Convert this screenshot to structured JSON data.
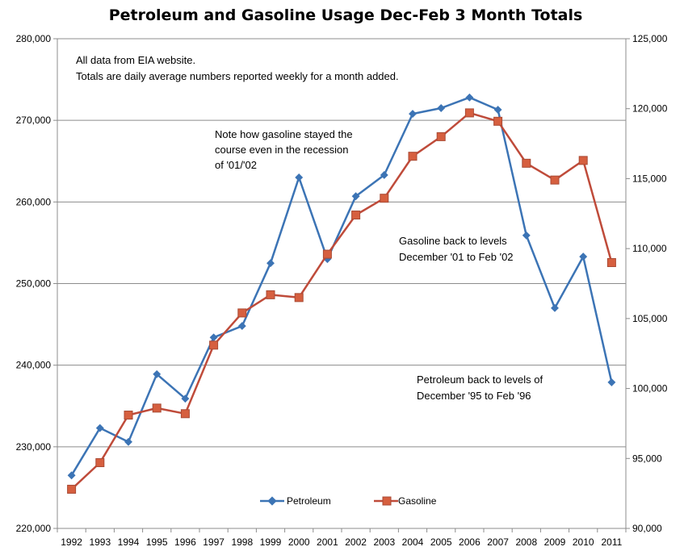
{
  "chart_data": {
    "type": "line",
    "title": "Petroleum and Gasoline Usage Dec-Feb 3 Month Totals",
    "x": [
      "1992",
      "1993",
      "1994",
      "1995",
      "1996",
      "1997",
      "1998",
      "1999",
      "2000",
      "2001",
      "2002",
      "2003",
      "2004",
      "2005",
      "2006",
      "2007",
      "2008",
      "2009",
      "2010",
      "2011"
    ],
    "y_left": {
      "min": 220000,
      "max": 280000,
      "step": 10000,
      "ticks": [
        "220,000",
        "230,000",
        "240,000",
        "250,000",
        "260,000",
        "270,000",
        "280,000"
      ]
    },
    "y_right": {
      "min": 90000,
      "max": 125000,
      "step": 5000,
      "ticks": [
        "90,000",
        "95,000",
        "100,000",
        "105,000",
        "110,000",
        "115,000",
        "120,000",
        "125,000"
      ]
    },
    "grid": true,
    "legend_position": "bottom-center",
    "series": [
      {
        "name": "Petroleum",
        "axis": "left",
        "color": "#3c74b5",
        "marker": "diamond",
        "values": [
          226500,
          232300,
          230600,
          238900,
          235900,
          243400,
          244800,
          252500,
          263000,
          253000,
          260700,
          263300,
          270800,
          271500,
          272800,
          271300,
          255900,
          247000,
          253300,
          237900
        ]
      },
      {
        "name": "Gasoline",
        "axis": "right",
        "color": "#bf4b3a",
        "marker": "square",
        "values": [
          92800,
          94700,
          98100,
          98600,
          98200,
          103100,
          105400,
          106700,
          106500,
          109600,
          112400,
          113600,
          116600,
          118000,
          119700,
          119100,
          116100,
          114900,
          116300,
          109000
        ]
      }
    ],
    "annotations": [
      {
        "lines": [
          "All data from EIA website.",
          "Totals are daily average numbers reported  weekly for a month  added."
        ]
      },
      {
        "lines": [
          "Note how gasoline stayed the",
          "course even in the recession",
          "of '01/'02"
        ]
      },
      {
        "lines": [
          "Gasoline back to levels",
          "December  '01 to Feb '02"
        ]
      },
      {
        "lines": [
          "Petroleum  back to levels of",
          "December  '95 to Feb '96"
        ]
      }
    ]
  }
}
